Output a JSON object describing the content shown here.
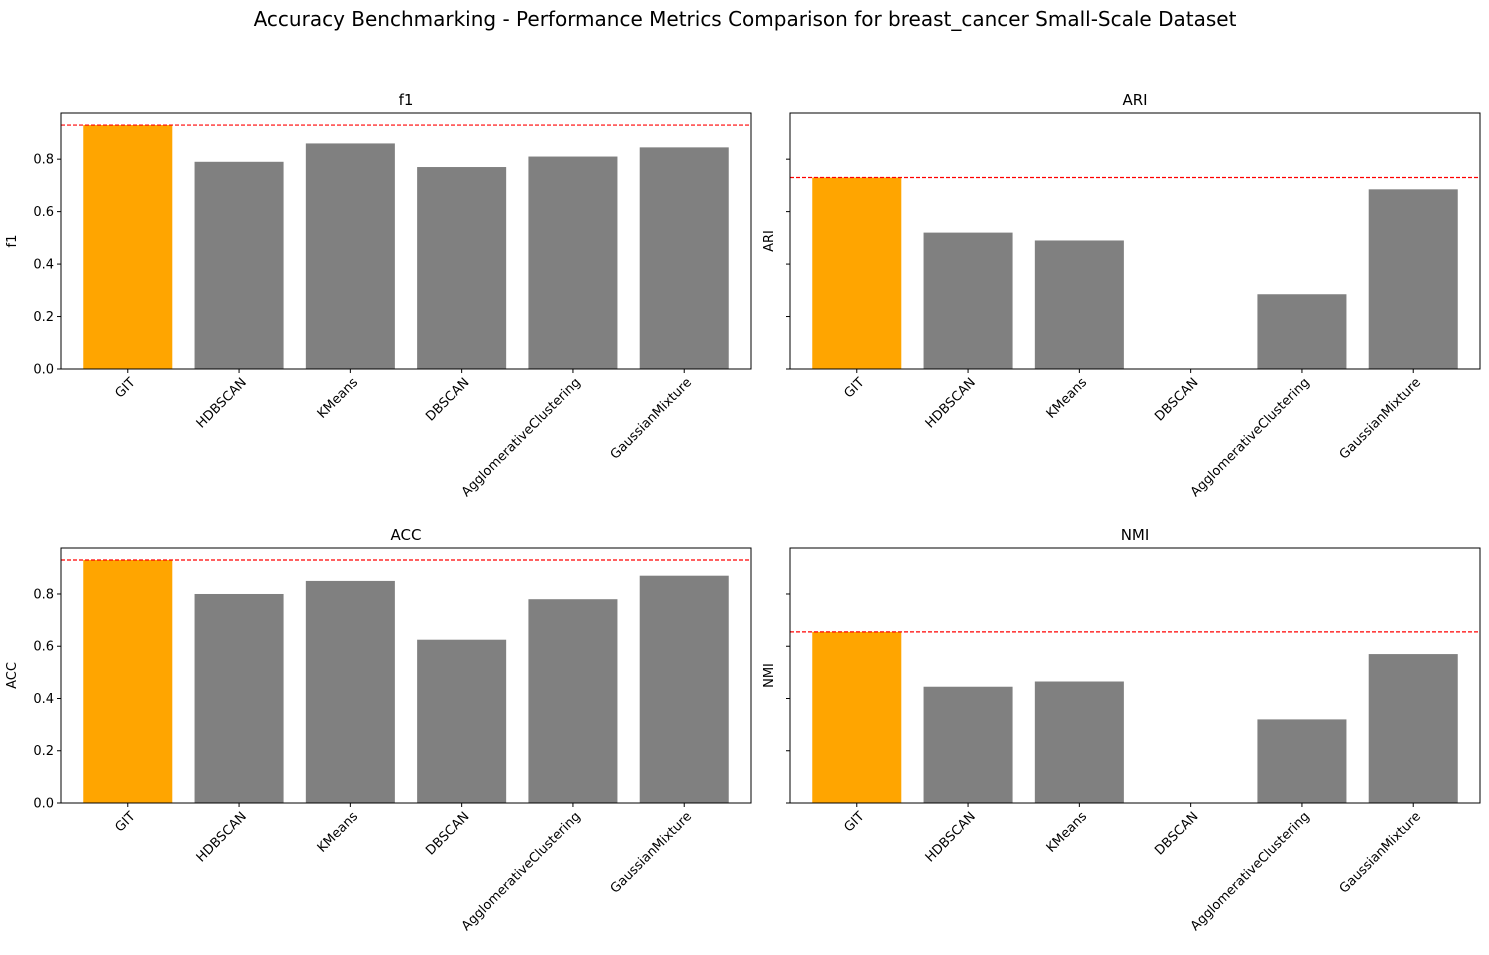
{
  "title": "Accuracy Benchmarking - Performance Metrics Comparison for breast_cancer Small-Scale Dataset",
  "colors": {
    "highlight": "#FFA500",
    "bar": "#808080",
    "reference_line": "#FF0000",
    "axes": "#000000"
  },
  "chart_data": [
    {
      "type": "bar",
      "title": "f1",
      "ylabel": "f1",
      "categories": [
        "GIT",
        "HDBSCAN",
        "KMeans",
        "DBSCAN",
        "AgglomerativeClustering",
        "GaussianMixture"
      ],
      "values": [
        0.93,
        0.79,
        0.86,
        0.77,
        0.81,
        0.845
      ],
      "ylim": [
        0,
        0.976
      ],
      "yticks": [
        0.0,
        0.2,
        0.4,
        0.6,
        0.8
      ],
      "show_ytick_labels": true,
      "reference_line": 0.93,
      "highlight_category": "GIT",
      "grid": false
    },
    {
      "type": "bar",
      "title": "ARI",
      "ylabel": "ARI",
      "categories": [
        "GIT",
        "HDBSCAN",
        "KMeans",
        "DBSCAN",
        "AgglomerativeClustering",
        "GaussianMixture"
      ],
      "values": [
        0.73,
        0.52,
        0.49,
        0.0,
        0.285,
        0.685
      ],
      "ylim": [
        0,
        0.976
      ],
      "yticks": [
        0.0,
        0.2,
        0.4,
        0.6,
        0.8
      ],
      "show_ytick_labels": false,
      "reference_line": 0.73,
      "highlight_category": "GIT",
      "grid": false
    },
    {
      "type": "bar",
      "title": "ACC",
      "ylabel": "ACC",
      "categories": [
        "GIT",
        "HDBSCAN",
        "KMeans",
        "DBSCAN",
        "AgglomerativeClustering",
        "GaussianMixture"
      ],
      "values": [
        0.93,
        0.8,
        0.85,
        0.625,
        0.78,
        0.87
      ],
      "ylim": [
        0,
        0.976
      ],
      "yticks": [
        0.0,
        0.2,
        0.4,
        0.6,
        0.8
      ],
      "show_ytick_labels": true,
      "reference_line": 0.93,
      "highlight_category": "GIT",
      "grid": false
    },
    {
      "type": "bar",
      "title": "NMI",
      "ylabel": "NMI",
      "categories": [
        "GIT",
        "HDBSCAN",
        "KMeans",
        "DBSCAN",
        "AgglomerativeClustering",
        "GaussianMixture"
      ],
      "values": [
        0.655,
        0.445,
        0.465,
        0.0,
        0.32,
        0.57
      ],
      "ylim": [
        0,
        0.976
      ],
      "yticks": [
        0.0,
        0.2,
        0.4,
        0.6,
        0.8
      ],
      "show_ytick_labels": false,
      "reference_line": 0.655,
      "highlight_category": "GIT",
      "grid": false
    }
  ]
}
